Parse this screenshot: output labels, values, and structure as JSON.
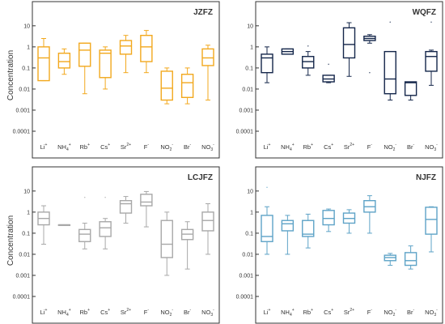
{
  "figure": {
    "ylabel": "Concentration"
  },
  "chart_data": [
    {
      "type": "box",
      "title": "JZFZ",
      "ylabel": "Concentration",
      "yscale": "log",
      "ylim": [
        0.0001,
        20
      ],
      "yticks": [
        "0.0001",
        "0.001",
        "0.01",
        "0.1",
        "1",
        "10"
      ],
      "color": "#f2a81d",
      "categories": [
        {
          "base": "Li",
          "sub": "",
          "sup": "+"
        },
        {
          "base": "NH",
          "sub": "4",
          "sup": "+"
        },
        {
          "base": "Rb",
          "sub": "",
          "sup": "+"
        },
        {
          "base": "Cs",
          "sub": "",
          "sup": "+"
        },
        {
          "base": "Sr",
          "sub": "",
          "sup": "2+"
        },
        {
          "base": "F",
          "sub": "",
          "sup": "-"
        },
        {
          "base": "NO",
          "sub": "2",
          "sup": "-"
        },
        {
          "base": "Br",
          "sub": "",
          "sup": "-"
        },
        {
          "base": "NO",
          "sub": "3",
          "sup": "-"
        }
      ],
      "boxes": [
        {
          "whislo": 0.025,
          "q1": 0.025,
          "med": 0.3,
          "q3": 1.0,
          "whishi": 2.5,
          "fliers": []
        },
        {
          "whislo": 0.05,
          "q1": 0.1,
          "med": 0.2,
          "q3": 0.5,
          "whishi": 0.8,
          "fliers": []
        },
        {
          "whislo": 0.006,
          "q1": 0.12,
          "med": 0.7,
          "q3": 1.5,
          "whishi": 1.5,
          "fliers": []
        },
        {
          "whislo": 0.01,
          "q1": 0.035,
          "med": 0.5,
          "q3": 0.7,
          "whishi": 1.0,
          "fliers": []
        },
        {
          "whislo": 0.06,
          "q1": 0.45,
          "med": 1.1,
          "q3": 2.0,
          "whishi": 3.5,
          "fliers": []
        },
        {
          "whislo": 0.06,
          "q1": 0.2,
          "med": 1.0,
          "q3": 3.5,
          "whishi": 6.0,
          "fliers": []
        },
        {
          "whislo": 0.002,
          "q1": 0.003,
          "med": 0.011,
          "q3": 0.07,
          "whishi": 0.1,
          "fliers": []
        },
        {
          "whislo": 0.002,
          "q1": 0.004,
          "med": 0.02,
          "q3": 0.05,
          "whishi": 0.1,
          "fliers": []
        },
        {
          "whislo": 0.003,
          "q1": 0.13,
          "med": 0.3,
          "q3": 0.8,
          "whishi": 1.2,
          "fliers": []
        }
      ]
    },
    {
      "type": "box",
      "title": "WQFZ",
      "ylabel": "",
      "yscale": "log",
      "ylim": [
        0.0001,
        20
      ],
      "yticks": [
        "0.0001",
        "0.001",
        "0.01",
        "0.1",
        "1",
        "10"
      ],
      "color": "#14264a",
      "categories": [
        {
          "base": "Li",
          "sub": "",
          "sup": "+"
        },
        {
          "base": "NH",
          "sub": "4",
          "sup": "+"
        },
        {
          "base": "Rb",
          "sub": "",
          "sup": "+"
        },
        {
          "base": "Cs",
          "sub": "",
          "sup": "+"
        },
        {
          "base": "Sr",
          "sub": "",
          "sup": "2+"
        },
        {
          "base": "F",
          "sub": "",
          "sup": "-"
        },
        {
          "base": "NO",
          "sub": "2",
          "sup": "-"
        },
        {
          "base": "Br",
          "sub": "",
          "sup": "-"
        },
        {
          "base": "NO",
          "sub": "3",
          "sup": "-"
        }
      ],
      "boxes": [
        {
          "whislo": 0.02,
          "q1": 0.06,
          "med": 0.3,
          "q3": 0.45,
          "whishi": 1.0,
          "fliers": []
        },
        {
          "whislo": 0.45,
          "q1": 0.45,
          "med": 0.6,
          "q3": 0.8,
          "whishi": 0.8,
          "fliers": []
        },
        {
          "whislo": 0.045,
          "q1": 0.1,
          "med": 0.2,
          "q3": 0.35,
          "whishi": 0.6,
          "fliers": [
            1.1
          ]
        },
        {
          "whislo": 0.02,
          "q1": 0.022,
          "med": 0.03,
          "q3": 0.045,
          "whishi": 0.045,
          "fliers": [
            0.15
          ]
        },
        {
          "whislo": 0.04,
          "q1": 0.3,
          "med": 1.3,
          "q3": 8.0,
          "whishi": 14.0,
          "fliers": []
        },
        {
          "whislo": 1.5,
          "q1": 2.0,
          "med": 2.5,
          "q3": 3.2,
          "whishi": 3.8,
          "fliers": [
            0.06
          ]
        },
        {
          "whislo": 0.003,
          "q1": 0.006,
          "med": 0.03,
          "q3": 0.6,
          "whishi": 0.6,
          "fliers": [
            15.0
          ]
        },
        {
          "whislo": 0.003,
          "q1": 0.005,
          "med": 0.02,
          "q3": 0.022,
          "whishi": 0.022,
          "fliers": []
        },
        {
          "whislo": 0.015,
          "q1": 0.07,
          "med": 0.35,
          "q3": 0.6,
          "whishi": 0.7,
          "fliers": [
            15.0
          ]
        }
      ]
    },
    {
      "type": "box",
      "title": "LCJFZ",
      "ylabel": "Concentration",
      "yscale": "log",
      "ylim": [
        0.0001,
        20
      ],
      "yticks": [
        "0.0001",
        "0.001",
        "0.01",
        "0.1",
        "1",
        "10"
      ],
      "color": "#a8a8a8",
      "categories": [
        {
          "base": "Li",
          "sub": "",
          "sup": "+"
        },
        {
          "base": "NH",
          "sub": "4",
          "sup": "+"
        },
        {
          "base": "Rb",
          "sub": "",
          "sup": "+"
        },
        {
          "base": "Cs",
          "sub": "",
          "sup": "+"
        },
        {
          "base": "Sr",
          "sub": "",
          "sup": "2+"
        },
        {
          "base": "F",
          "sub": "",
          "sup": "-"
        },
        {
          "base": "NO",
          "sub": "2",
          "sup": "-"
        },
        {
          "base": "Br",
          "sub": "",
          "sup": "-"
        },
        {
          "base": "NO",
          "sub": "3",
          "sup": "-"
        }
      ],
      "boxes": [
        {
          "whislo": 0.03,
          "q1": 0.25,
          "med": 0.5,
          "q3": 1.0,
          "whishi": 2.0,
          "fliers": []
        },
        {
          "whislo": 0.25,
          "q1": 0.25,
          "med": 0.25,
          "q3": 0.25,
          "whishi": 0.25,
          "fliers": []
        },
        {
          "whislo": 0.018,
          "q1": 0.04,
          "med": 0.09,
          "q3": 0.15,
          "whishi": 0.3,
          "fliers": [
            5.0
          ]
        },
        {
          "whislo": 0.018,
          "q1": 0.07,
          "med": 0.18,
          "q3": 0.35,
          "whishi": 0.5,
          "fliers": [
            5.0
          ]
        },
        {
          "whislo": 0.3,
          "q1": 0.9,
          "med": 2.5,
          "q3": 3.5,
          "whishi": 5.5,
          "fliers": []
        },
        {
          "whislo": 0.2,
          "q1": 2.0,
          "med": 3.0,
          "q3": 7.0,
          "whishi": 9.5,
          "fliers": []
        },
        {
          "whislo": 0.001,
          "q1": 0.007,
          "med": 0.03,
          "q3": 0.4,
          "whishi": 1.0,
          "fliers": []
        },
        {
          "whislo": 0.002,
          "q1": 0.05,
          "med": 0.09,
          "q3": 0.15,
          "whishi": 0.35,
          "fliers": []
        },
        {
          "whislo": 0.01,
          "q1": 0.13,
          "med": 0.4,
          "q3": 1.0,
          "whishi": 2.5,
          "fliers": []
        }
      ]
    },
    {
      "type": "box",
      "title": "NJFZ",
      "ylabel": "",
      "yscale": "log",
      "ylim": [
        0.0001,
        20
      ],
      "yticks": [
        "0.0001",
        "0.001",
        "0.01",
        "0.1",
        "1",
        "10"
      ],
      "color": "#5ea3c7",
      "categories": [
        {
          "base": "Li",
          "sub": "",
          "sup": "+"
        },
        {
          "base": "NH",
          "sub": "4",
          "sup": "+"
        },
        {
          "base": "Rb",
          "sub": "",
          "sup": "+"
        },
        {
          "base": "Cs",
          "sub": "",
          "sup": "+"
        },
        {
          "base": "Sr",
          "sub": "",
          "sup": "2+"
        },
        {
          "base": "F",
          "sub": "",
          "sup": "-"
        },
        {
          "base": "NO",
          "sub": "2",
          "sup": "-"
        },
        {
          "base": "Br",
          "sub": "",
          "sup": "-"
        },
        {
          "base": "NO",
          "sub": "3",
          "sup": "-"
        }
      ],
      "boxes": [
        {
          "whislo": 0.01,
          "q1": 0.04,
          "med": 0.07,
          "q3": 0.7,
          "whishi": 1.8,
          "fliers": [
            15.0
          ]
        },
        {
          "whislo": 0.01,
          "q1": 0.13,
          "med": 0.28,
          "q3": 0.4,
          "whishi": 0.7,
          "fliers": []
        },
        {
          "whislo": 0.02,
          "q1": 0.07,
          "med": 0.09,
          "q3": 0.4,
          "whishi": 0.8,
          "fliers": []
        },
        {
          "whislo": 0.12,
          "q1": 0.25,
          "med": 0.5,
          "q3": 1.2,
          "whishi": 1.4,
          "fliers": []
        },
        {
          "whislo": 0.1,
          "q1": 0.3,
          "med": 0.5,
          "q3": 0.9,
          "whishi": 1.3,
          "fliers": []
        },
        {
          "whislo": 0.1,
          "q1": 1.0,
          "med": 1.8,
          "q3": 3.5,
          "whishi": 6.0,
          "fliers": []
        },
        {
          "whislo": 0.003,
          "q1": 0.005,
          "med": 0.007,
          "q3": 0.009,
          "whishi": 0.011,
          "fliers": []
        },
        {
          "whislo": 0.002,
          "q1": 0.003,
          "med": 0.005,
          "q3": 0.012,
          "whishi": 0.025,
          "fliers": []
        },
        {
          "whislo": 0.013,
          "q1": 0.09,
          "med": 0.45,
          "q3": 1.7,
          "whishi": 1.8,
          "fliers": []
        }
      ]
    }
  ]
}
